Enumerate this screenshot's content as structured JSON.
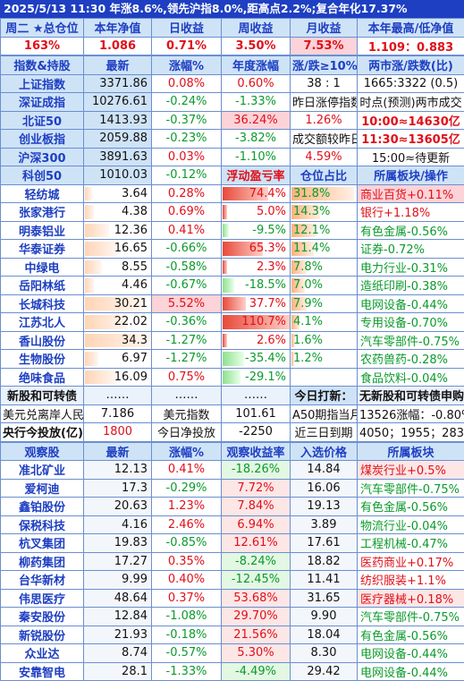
{
  "banner": "2025/5/13 11:30 年涨8.6%,领先沪指8.0%,距高点2.2%;复合年化17.37%",
  "summary": {
    "headers": [
      "周二 ★总仓位",
      "本年净值",
      "日收益",
      "周收益",
      "月收益",
      "本年最高/低净值"
    ],
    "values": [
      "163%",
      "1.086",
      "0.71%",
      "3.50%",
      "7.53%",
      "1.109：0.883"
    ]
  },
  "index_header": [
    "指数&持股",
    "最新",
    "涨幅%",
    "年度涨幅",
    "涨/跌≥10%",
    "两市涨/跌数(比)"
  ],
  "indices": [
    {
      "name": "上证指数",
      "price": "3371.86",
      "chg": "0.08%",
      "ytd": "0.60%",
      "c5": "38 : 1",
      "c6": "1665:3322 (0.5)"
    },
    {
      "name": "深证成指",
      "price": "10276.61",
      "chg": "-0.24%",
      "ytd": "-1.33%",
      "c5": "昨日涨停指数",
      "c6": "时点(预测)两市成交"
    },
    {
      "name": "北证50",
      "price": "1413.93",
      "chg": "-0.37%",
      "ytd": "36.24%",
      "c5": "1.26%",
      "c6": "10:00≈14630亿"
    },
    {
      "name": "创业板指",
      "price": "2059.88",
      "chg": "-0.23%",
      "ytd": "-3.82%",
      "c5": "成交额较昨日",
      "c6": "11:30≈13605亿"
    },
    {
      "name": "沪深300",
      "price": "3891.63",
      "chg": "0.03%",
      "ytd": "-1.10%",
      "c5": "4.59%",
      "c6": "15:00≈待更新"
    },
    {
      "name": "科创50",
      "price": "1010.03",
      "chg": "-0.12%",
      "ytd": "浮动盈亏率",
      "c5": "仓位占比",
      "c6": "所属板块/操作"
    }
  ],
  "holdings": [
    {
      "name": "轻纺城",
      "price": "3.64",
      "chg": "0.28%",
      "pnl": "74.4%",
      "pos": "31.8%",
      "sector": "商业百货+0.11%"
    },
    {
      "name": "张家港行",
      "price": "4.38",
      "chg": "0.69%",
      "pnl": "5.0%",
      "pos": "14.3%",
      "sector": "银行+1.18%"
    },
    {
      "name": "明泰铝业",
      "price": "12.36",
      "chg": "0.41%",
      "pnl": "-9.5%",
      "pos": "12.1%",
      "sector": "有色金属-0.56%"
    },
    {
      "name": "华泰证券",
      "price": "16.65",
      "chg": "-0.66%",
      "pnl": "65.3%",
      "pos": "11.4%",
      "sector": "证券-0.72%"
    },
    {
      "name": "中绿电",
      "price": "8.55",
      "chg": "-0.58%",
      "pnl": "2.3%",
      "pos": "7.8%",
      "sector": "电力行业-0.31%"
    },
    {
      "name": "岳阳林纸",
      "price": "4.46",
      "chg": "-0.67%",
      "pnl": "-18.5%",
      "pos": "7.0%",
      "sector": "造纸印刷-0.38%"
    },
    {
      "name": "长城科技",
      "price": "30.21",
      "chg": "5.52%",
      "pnl": "37.7%",
      "pos": "7.9%",
      "sector": "电网设备-0.44%"
    },
    {
      "name": "江苏北人",
      "price": "22.02",
      "chg": "-0.36%",
      "pnl": "110.7%",
      "pos": "4.1%",
      "sector": "专用设备-0.70%"
    },
    {
      "name": "香山股份",
      "price": "34.3",
      "chg": "-1.27%",
      "pnl": "2.6%",
      "pos": "1.6%",
      "sector": "汽车零部件-0.75%"
    },
    {
      "name": "生物股份",
      "price": "6.97",
      "chg": "-1.27%",
      "pnl": "-35.4%",
      "pos": "1.2%",
      "sector": "农药兽药-0.28%"
    },
    {
      "name": "绝味食品",
      "price": "16.09",
      "chg": "0.75%",
      "pnl": "-29.1%",
      "pos": "",
      "sector": "食品饮料-0.04%"
    }
  ],
  "new_row": {
    "name": "新股和可转债",
    "c2": "……",
    "c3": "……",
    "c4": "……",
    "c5": "今日打新：",
    "c6": "无新股和可转债申购"
  },
  "fx_row": {
    "c1": "美元兑离岸人民币",
    "c2": "7.186",
    "c3": "美元指数",
    "c4": "101.61",
    "c5": "A50期指当月",
    "c6": "13526涨幅：-0.80%"
  },
  "cb_row": {
    "c1": "央行今投放(亿)",
    "c2": "1800",
    "c3": "今日净投放",
    "c4": "-2250",
    "c5": "近三日到期",
    "c6": "4050；1955；2836"
  },
  "watch_header": [
    "观察股",
    "最新",
    "涨幅%",
    "观察收益率",
    "入选价格",
    "所属板块"
  ],
  "watch": [
    {
      "name": "准北矿业",
      "price": "12.13",
      "chg": "0.41%",
      "ret": "-18.26%",
      "entry": "14.84",
      "sector": "煤炭行业+0.5%"
    },
    {
      "name": "爱柯迪",
      "price": "17.3",
      "chg": "-0.29%",
      "ret": "7.72%",
      "entry": "16.06",
      "sector": "汽车零部件-0.75%"
    },
    {
      "name": "鑫铂股份",
      "price": "20.63",
      "chg": "1.23%",
      "ret": "7.84%",
      "entry": "19.13",
      "sector": "有色金属-0.56%"
    },
    {
      "name": "保税科技",
      "price": "4.16",
      "chg": "2.46%",
      "ret": "6.94%",
      "entry": "3.89",
      "sector": "物流行业-0.04%"
    },
    {
      "name": "杭叉集团",
      "price": "19.83",
      "chg": "-0.85%",
      "ret": "12.61%",
      "entry": "17.61",
      "sector": "工程机械-0.47%"
    },
    {
      "name": "柳药集团",
      "price": "17.27",
      "chg": "0.35%",
      "ret": "-8.24%",
      "entry": "18.82",
      "sector": "医药商业+0.17%"
    },
    {
      "name": "台华新材",
      "price": "9.99",
      "chg": "0.40%",
      "ret": "-12.45%",
      "entry": "11.41",
      "sector": "纺织服装+1.1%"
    },
    {
      "name": "伟思医疗",
      "price": "48.64",
      "chg": "0.37%",
      "ret": "53.68%",
      "entry": "31.65",
      "sector": "医疗器械+0.18%"
    },
    {
      "name": "秦安股份",
      "price": "12.84",
      "chg": "-1.08%",
      "ret": "29.70%",
      "entry": "9.90",
      "sector": "汽车零部件-0.75%"
    },
    {
      "name": "新锐股份",
      "price": "21.93",
      "chg": "-0.18%",
      "ret": "21.56%",
      "entry": "18.04",
      "sector": "有色金属-0.56%"
    },
    {
      "name": "众业达",
      "price": "8.74",
      "chg": "-0.57%",
      "ret": "5.30%",
      "entry": "8.30",
      "sector": "电网设备-0.44%"
    },
    {
      "name": "安靠智电",
      "price": "28.1",
      "chg": "-1.33%",
      "ret": "-4.49%",
      "entry": "29.42",
      "sector": "电网设备-0.44%"
    }
  ],
  "colors": {
    "up": "#e0101a",
    "down": "#0b9a2c",
    "header_blue": "#1e3fc2",
    "header_bg": "#cfe3f7"
  }
}
